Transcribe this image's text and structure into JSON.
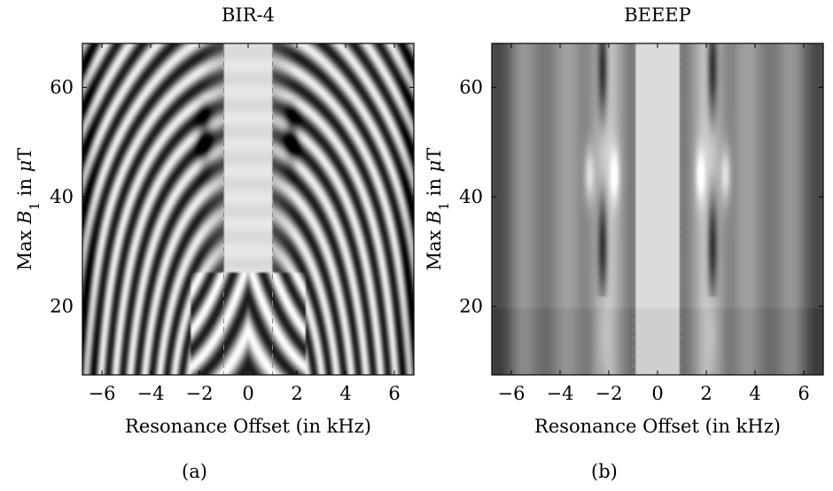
{
  "chart_data": [
    {
      "type": "heatmap",
      "title": "BIR-4",
      "caption": "(a)",
      "xlabel": "Resonance Offset (in kHz)",
      "ylabel_parts": [
        "Max ",
        "B",
        "1",
        " in ",
        "μ",
        "T"
      ],
      "xlim": [
        -6.8,
        6.8
      ],
      "ylim": [
        7.5,
        68
      ],
      "xticks": [
        -6,
        -4,
        -2,
        0,
        2,
        4,
        6
      ],
      "xtick_labels": [
        "−6",
        "−4",
        "−2",
        "0",
        "2",
        "4",
        "6"
      ],
      "yticks": [
        20,
        40,
        60
      ],
      "ytick_labels": [
        "20",
        "40",
        "60"
      ],
      "dashed_lines_x": [
        -1,
        1
      ],
      "colormap": "grayscale",
      "pattern": "bir4"
    },
    {
      "type": "heatmap",
      "title": "BEEEP",
      "caption": "(b)",
      "xlabel": "Resonance Offset (in kHz)",
      "ylabel_parts": [
        "Max ",
        "B",
        "1",
        " in ",
        "μ",
        "T"
      ],
      "xlim": [
        -6.8,
        6.8
      ],
      "ylim": [
        7.5,
        68
      ],
      "xticks": [
        -6,
        -4,
        -2,
        0,
        2,
        4,
        6
      ],
      "xtick_labels": [
        "−6",
        "−4",
        "−2",
        "0",
        "2",
        "4",
        "6"
      ],
      "yticks": [
        20,
        40,
        60
      ],
      "ytick_labels": [
        "20",
        "40",
        "60"
      ],
      "dashed_lines_x": [
        -1,
        1
      ],
      "colormap": "grayscale",
      "pattern": "beeep"
    }
  ]
}
